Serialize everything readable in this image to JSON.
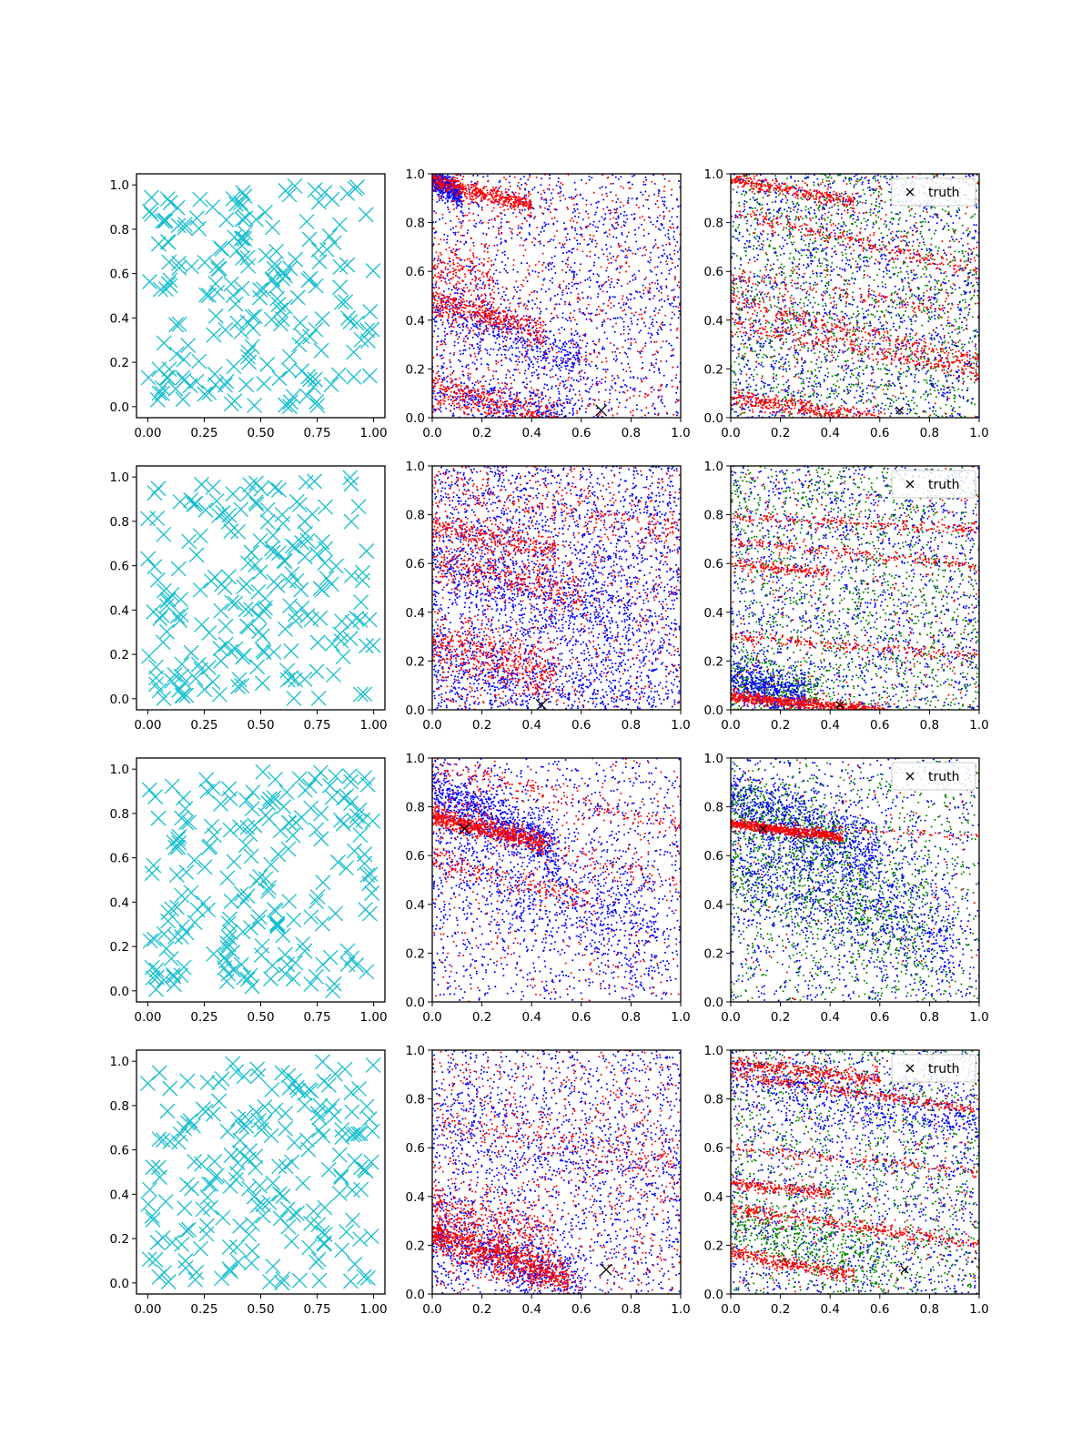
{
  "figure": {
    "title": "",
    "layout": "4 rows x 3 columns",
    "colors": {
      "samples": "#17becf",
      "prior": "#0000ff",
      "posterior": "#ff0000",
      "extra": "#008000",
      "truth": "#000000"
    }
  },
  "chart_data": [
    {
      "type": "scatter",
      "row": 1,
      "col": 1,
      "marker": "x",
      "xlim": [
        -0.05,
        1.05
      ],
      "ylim": [
        -0.05,
        1.05
      ],
      "xticks": [
        "0.00",
        "0.25",
        "0.50",
        "0.75",
        "1.00"
      ],
      "yticks": [
        "0.0",
        "0.2",
        "0.4",
        "0.6",
        "0.8",
        "1.0"
      ],
      "series": [
        {
          "name": "samples",
          "color": "#17becf",
          "n_points": 200,
          "seed": 11
        }
      ]
    },
    {
      "type": "scatter",
      "row": 1,
      "col": 2,
      "marker": ".",
      "xlim": [
        0,
        1
      ],
      "ylim": [
        0,
        1
      ],
      "xticks": [
        "0.0",
        "0.2",
        "0.4",
        "0.6",
        "0.8",
        "1.0"
      ],
      "yticks": [
        "0.0",
        "0.2",
        "0.4",
        "0.6",
        "0.8",
        "1.0"
      ],
      "truth": {
        "x": 0.68,
        "y": 0.03
      },
      "series": [
        {
          "name": "blue",
          "color": "#0000ff",
          "uniform": 1500,
          "bands": [
            [
              0.98,
              -0.55,
              0.12,
              0.025,
              500
            ],
            [
              0.45,
              -0.35,
              0.6,
              0.05,
              400
            ],
            [
              0.12,
              -0.25,
              0.6,
              0.05,
              350
            ]
          ],
          "seed": 21
        },
        {
          "name": "red",
          "color": "#ff0000",
          "uniform": 700,
          "bands": [
            [
              0.97,
              -0.25,
              0.4,
              0.02,
              500
            ],
            [
              0.47,
              -0.25,
              0.45,
              0.03,
              400
            ],
            [
              0.13,
              -0.3,
              0.5,
              0.04,
              400
            ],
            [
              0.62,
              -0.15,
              0.25,
              0.05,
              150
            ]
          ],
          "seed": 22
        }
      ]
    },
    {
      "type": "scatter",
      "row": 1,
      "col": 3,
      "marker": ".",
      "xlim": [
        0,
        1
      ],
      "ylim": [
        0,
        1
      ],
      "xticks": [
        "0.0",
        "0.2",
        "0.4",
        "0.6",
        "0.8",
        "1.0"
      ],
      "yticks": [
        "0.0",
        "0.2",
        "0.4",
        "0.6",
        "0.8",
        "1.0"
      ],
      "truth": {
        "x": 0.68,
        "y": 0.03
      },
      "legend": {
        "label": "truth",
        "loc": "upper right"
      },
      "series": [
        {
          "name": "green",
          "color": "#008000",
          "uniform": 1600,
          "bands": [],
          "seed": 31
        },
        {
          "name": "blue",
          "color": "#0000ff",
          "uniform": 1500,
          "bands": [],
          "seed": 32
        },
        {
          "name": "red",
          "color": "#ff0000",
          "uniform": 300,
          "bands": [
            [
              0.98,
              -0.2,
              0.5,
              0.015,
              300
            ],
            [
              0.85,
              -0.25,
              1.0,
              0.02,
              250
            ],
            [
              0.48,
              -0.25,
              1.0,
              0.02,
              300
            ],
            [
              0.38,
              -0.2,
              1.0,
              0.02,
              250
            ],
            [
              0.08,
              -0.15,
              0.6,
              0.02,
              400
            ],
            [
              0.58,
              -0.15,
              1.0,
              0.03,
              150
            ]
          ],
          "seed": 33
        }
      ]
    },
    {
      "type": "scatter",
      "row": 2,
      "col": 1,
      "marker": "x",
      "xlim": [
        -0.05,
        1.05
      ],
      "ylim": [
        -0.05,
        1.05
      ],
      "xticks": [
        "0.00",
        "0.25",
        "0.50",
        "0.75",
        "1.00"
      ],
      "yticks": [
        "0.0",
        "0.2",
        "0.4",
        "0.6",
        "0.8",
        "1.0"
      ],
      "series": [
        {
          "name": "samples",
          "color": "#17becf",
          "n_points": 200,
          "seed": 12
        }
      ]
    },
    {
      "type": "scatter",
      "row": 2,
      "col": 2,
      "marker": ".",
      "xlim": [
        0,
        1
      ],
      "ylim": [
        0,
        1
      ],
      "xticks": [
        "0.0",
        "0.2",
        "0.4",
        "0.6",
        "0.8",
        "1.0"
      ],
      "yticks": [
        "0.0",
        "0.2",
        "0.4",
        "0.6",
        "0.8",
        "1.0"
      ],
      "truth": {
        "x": 0.44,
        "y": 0.02
      },
      "series": [
        {
          "name": "blue",
          "color": "#0000ff",
          "uniform": 2600,
          "bands": [
            [
              0.6,
              -0.3,
              0.8,
              0.08,
              400
            ],
            [
              0.2,
              -0.2,
              0.8,
              0.08,
              300
            ]
          ],
          "seed": 41
        },
        {
          "name": "red",
          "color": "#ff0000",
          "uniform": 700,
          "bands": [
            [
              0.75,
              -0.2,
              0.5,
              0.03,
              300
            ],
            [
              0.6,
              -0.2,
              0.6,
              0.04,
              300
            ],
            [
              0.27,
              -0.25,
              0.5,
              0.06,
              450
            ],
            [
              0.92,
              -0.2,
              1.0,
              0.04,
              200
            ]
          ],
          "seed": 42
        }
      ]
    },
    {
      "type": "scatter",
      "row": 2,
      "col": 3,
      "marker": ".",
      "xlim": [
        0,
        1
      ],
      "ylim": [
        0,
        1
      ],
      "xticks": [
        "0.0",
        "0.2",
        "0.4",
        "0.6",
        "0.8",
        "1.0"
      ],
      "yticks": [
        "0.0",
        "0.2",
        "0.4",
        "0.6",
        "0.8",
        "1.0"
      ],
      "truth": {
        "x": 0.44,
        "y": 0.02
      },
      "legend": {
        "label": "truth",
        "loc": "upper right"
      },
      "series": [
        {
          "name": "green",
          "color": "#008000",
          "uniform": 1500,
          "bands": [
            [
              0.12,
              -0.2,
              0.35,
              0.06,
              300
            ]
          ],
          "seed": 51
        },
        {
          "name": "blue",
          "color": "#0000ff",
          "uniform": 1400,
          "bands": [
            [
              0.12,
              -0.25,
              0.3,
              0.05,
              500
            ]
          ],
          "seed": 52
        },
        {
          "name": "red",
          "color": "#ff0000",
          "uniform": 300,
          "bands": [
            [
              0.055,
              -0.1,
              0.62,
              0.012,
              650
            ],
            [
              0.79,
              -0.05,
              1.0,
              0.012,
              200
            ],
            [
              0.69,
              -0.1,
              1.0,
              0.012,
              200
            ],
            [
              0.6,
              -0.1,
              0.4,
              0.012,
              150
            ],
            [
              0.3,
              -0.08,
              1.0,
              0.012,
              200
            ]
          ],
          "seed": 53
        }
      ]
    },
    {
      "type": "scatter",
      "row": 3,
      "col": 1,
      "marker": "x",
      "xlim": [
        -0.05,
        1.05
      ],
      "ylim": [
        -0.05,
        1.05
      ],
      "xticks": [
        "0.00",
        "0.25",
        "0.50",
        "0.75",
        "1.00"
      ],
      "yticks": [
        "0.0",
        "0.2",
        "0.4",
        "0.6",
        "0.8",
        "1.0"
      ],
      "series": [
        {
          "name": "samples",
          "color": "#17becf",
          "n_points": 200,
          "seed": 13
        }
      ]
    },
    {
      "type": "scatter",
      "row": 3,
      "col": 2,
      "marker": ".",
      "xlim": [
        0,
        1
      ],
      "ylim": [
        0,
        1
      ],
      "xticks": [
        "0.0",
        "0.2",
        "0.4",
        "0.6",
        "0.8",
        "1.0"
      ],
      "yticks": [
        "0.0",
        "0.2",
        "0.4",
        "0.6",
        "0.8",
        "1.0"
      ],
      "truth": {
        "x": 0.13,
        "y": 0.71
      },
      "series": [
        {
          "name": "blue",
          "color": "#0000ff",
          "uniform": 1100,
          "bands": [
            [
              0.88,
              -0.5,
              0.5,
              0.05,
              700
            ],
            [
              0.65,
              -0.4,
              0.9,
              0.15,
              900
            ]
          ],
          "seed": 61
        },
        {
          "name": "red",
          "color": "#ff0000",
          "uniform": 300,
          "bands": [
            [
              0.76,
              -0.25,
              0.45,
              0.02,
              700
            ],
            [
              0.58,
              -0.25,
              0.65,
              0.03,
              200
            ],
            [
              0.97,
              -0.25,
              1.0,
              0.03,
              200
            ],
            [
              0.85,
              -0.4,
              1.0,
              0.03,
              150
            ]
          ],
          "seed": 62
        }
      ]
    },
    {
      "type": "scatter",
      "row": 3,
      "col": 3,
      "marker": ".",
      "xlim": [
        0,
        1
      ],
      "ylim": [
        0,
        1
      ],
      "xticks": [
        "0.0",
        "0.2",
        "0.4",
        "0.6",
        "0.8",
        "1.0"
      ],
      "yticks": [
        "0.0",
        "0.2",
        "0.4",
        "0.6",
        "0.8",
        "1.0"
      ],
      "truth": {
        "x": 0.13,
        "y": 0.71
      },
      "legend": {
        "label": "truth",
        "loc": "upper right"
      },
      "series": [
        {
          "name": "green",
          "color": "#008000",
          "uniform": 900,
          "bands": [
            [
              0.85,
              -0.45,
              0.5,
              0.06,
              400
            ],
            [
              0.6,
              -0.4,
              0.8,
              0.12,
              700
            ]
          ],
          "seed": 71
        },
        {
          "name": "blue",
          "color": "#0000ff",
          "uniform": 900,
          "bands": [
            [
              0.85,
              -0.4,
              0.6,
              0.07,
              600
            ],
            [
              0.62,
              -0.4,
              0.9,
              0.14,
              900
            ]
          ],
          "seed": 72
        },
        {
          "name": "red",
          "color": "#ff0000",
          "uniform": 80,
          "bands": [
            [
              0.73,
              -0.12,
              0.45,
              0.01,
              600
            ],
            [
              0.73,
              -0.05,
              1.0,
              0.008,
              80
            ]
          ],
          "seed": 73
        }
      ]
    },
    {
      "type": "scatter",
      "row": 4,
      "col": 1,
      "marker": "x",
      "xlim": [
        -0.05,
        1.05
      ],
      "ylim": [
        -0.05,
        1.05
      ],
      "xticks": [
        "0.00",
        "0.25",
        "0.50",
        "0.75",
        "1.00"
      ],
      "yticks": [
        "0.0",
        "0.2",
        "0.4",
        "0.6",
        "0.8",
        "1.0"
      ],
      "series": [
        {
          "name": "samples",
          "color": "#17becf",
          "n_points": 200,
          "seed": 14
        }
      ]
    },
    {
      "type": "scatter",
      "row": 4,
      "col": 2,
      "marker": ".",
      "xlim": [
        0,
        1
      ],
      "ylim": [
        0,
        1
      ],
      "xticks": [
        "0.0",
        "0.2",
        "0.4",
        "0.6",
        "0.8",
        "1.0"
      ],
      "yticks": [
        "0.0",
        "0.2",
        "0.4",
        "0.6",
        "0.8",
        "1.0"
      ],
      "truth": {
        "x": 0.7,
        "y": 0.1
      },
      "series": [
        {
          "name": "blue",
          "color": "#0000ff",
          "uniform": 1600,
          "bands": [
            [
              0.25,
              -0.35,
              0.6,
              0.08,
              700
            ],
            [
              0.7,
              -0.2,
              1.0,
              0.08,
              250
            ]
          ],
          "seed": 81
        },
        {
          "name": "red",
          "color": "#ff0000",
          "uniform": 700,
          "bands": [
            [
              0.25,
              -0.35,
              0.55,
              0.04,
              900
            ],
            [
              0.35,
              -0.25,
              0.5,
              0.06,
              300
            ],
            [
              0.72,
              -0.2,
              1.0,
              0.05,
              200
            ]
          ],
          "seed": 82
        }
      ]
    },
    {
      "type": "scatter",
      "row": 4,
      "col": 3,
      "marker": ".",
      "xlim": [
        0,
        1
      ],
      "ylim": [
        0,
        1
      ],
      "xticks": [
        "0.0",
        "0.2",
        "0.4",
        "0.6",
        "0.8",
        "1.0"
      ],
      "yticks": [
        "0.0",
        "0.2",
        "0.4",
        "0.6",
        "0.8",
        "1.0"
      ],
      "truth": {
        "x": 0.7,
        "y": 0.1
      },
      "legend": {
        "label": "truth",
        "loc": "upper right"
      },
      "series": [
        {
          "name": "green",
          "color": "#008000",
          "uniform": 1300,
          "bands": [
            [
              0.3,
              -0.3,
              0.6,
              0.07,
              400
            ]
          ],
          "seed": 91
        },
        {
          "name": "blue",
          "color": "#0000ff",
          "uniform": 1300,
          "bands": [
            [
              0.9,
              -0.2,
              1.0,
              0.06,
              500
            ]
          ],
          "seed": 92
        },
        {
          "name": "red",
          "color": "#ff0000",
          "uniform": 250,
          "bands": [
            [
              0.95,
              -0.12,
              0.6,
              0.012,
              300
            ],
            [
              0.9,
              -0.15,
              1.0,
              0.012,
              300
            ],
            [
              0.45,
              -0.1,
              0.4,
              0.012,
              200
            ],
            [
              0.35,
              -0.15,
              1.0,
              0.015,
              350
            ],
            [
              0.17,
              -0.2,
              0.5,
              0.015,
              300
            ],
            [
              0.6,
              -0.1,
              1.0,
              0.012,
              150
            ]
          ],
          "seed": 93
        }
      ]
    }
  ]
}
